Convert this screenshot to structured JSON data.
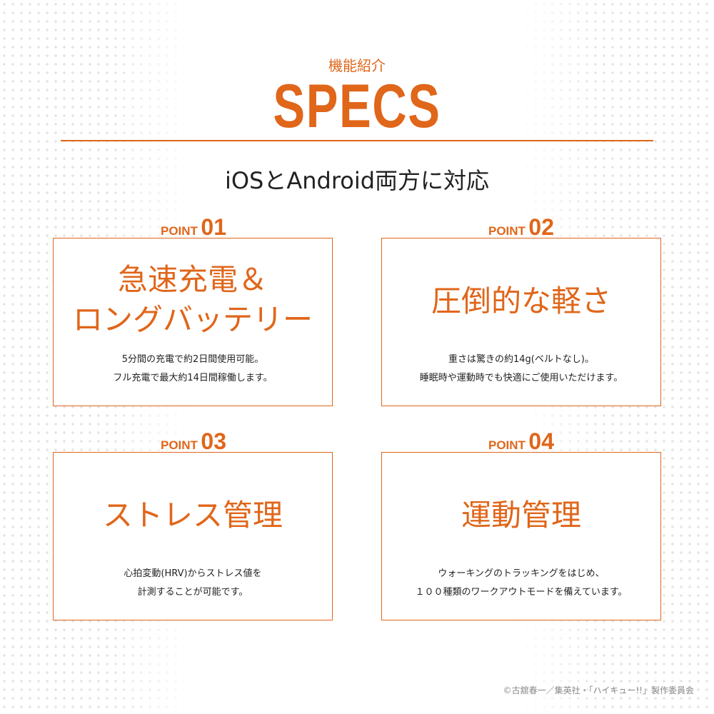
{
  "header": {
    "subtitle": "機能紹介",
    "title": "SPECS",
    "compat": "iOSとAndroid両方に対応"
  },
  "points": [
    {
      "label": "POINT",
      "num": "01",
      "title_lines": [
        "急速充電＆",
        "ロングバッテリー"
      ],
      "desc": [
        "5分間の充電で約2日間使用可能。",
        "フル充電で最大約14日間稼働します。"
      ]
    },
    {
      "label": "POINT",
      "num": "02",
      "title_lines": [
        "圧倒的な軽さ"
      ],
      "desc": [
        "重さは驚きの約14g(ベルトなし)。",
        "睡眠時や運動時でも快適にご使用いただけます。"
      ]
    },
    {
      "label": "POINT",
      "num": "03",
      "title_lines": [
        "ストレス管理"
      ],
      "desc": [
        "心拍変動(HRV)からストレス値を",
        "計測することが可能です。"
      ]
    },
    {
      "label": "POINT",
      "num": "04",
      "title_lines": [
        "運動管理"
      ],
      "desc": [
        "ウォーキングのトラッキングをはじめ、",
        "１００種類のワークアウトモードを備えています。"
      ]
    }
  ],
  "copyright": "©古舘春一／集英社・「ハイキュー!!」製作委員会",
  "colors": {
    "accent": "#e0661a"
  }
}
